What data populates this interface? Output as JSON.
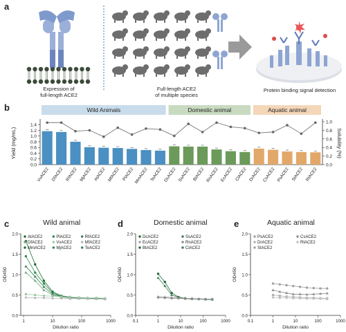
{
  "panel_a": {
    "letter": "a",
    "caption_left": [
      "Expression of",
      "full-length ACE2"
    ],
    "caption_middle": [
      "Full-length ACE2",
      "of multiple species"
    ],
    "caption_right": "Protein binding signal detection",
    "animal_icons": [
      "rabbit-icon",
      "rat-icon",
      "turtle-icon",
      "bat-icon",
      "chicken-icon",
      "cow-icon",
      "pig-icon",
      "hedgehog-icon",
      "sheep-icon",
      "horse-icon",
      "bird-icon",
      "fish-icon",
      "snake-icon",
      "pangolin-icon",
      "dog-icon",
      "cat-icon",
      "monkey-icon",
      "squirrel-icon",
      "rodent-icon",
      "human-icon"
    ]
  },
  "panel_b": {
    "letter": "b",
    "group_labels": [
      "Wild Animals",
      "Domestic animal",
      "Aquatic animal"
    ],
    "group_colors": [
      "#4a90c2",
      "#6b9a5a",
      "#e2a86a"
    ],
    "group_header_colors": [
      "#c8dceb",
      "#c8dac0",
      "#f4d6b8"
    ],
    "chart_data": {
      "type": "bar",
      "categories": [
        "VvACE2",
        "DfACE2",
        "RfACE2",
        "MjACE2",
        "AtACE2",
        "MfACE2",
        "PlACE2",
        "MmACE2",
        "TeACE2",
        "DcACE2",
        "SsACE2",
        "BtACE2",
        "RnACE2",
        "EcACE2",
        "ClACE2",
        "DrACE2",
        "CsACE2",
        "PsACE2",
        "StACE2",
        "RtACE2"
      ],
      "groups": [
        0,
        0,
        0,
        0,
        0,
        0,
        0,
        0,
        0,
        1,
        1,
        1,
        1,
        1,
        1,
        2,
        2,
        2,
        2,
        2
      ],
      "values": [
        1.17,
        1.14,
        0.8,
        0.61,
        0.59,
        0.58,
        0.55,
        0.51,
        0.49,
        0.64,
        0.63,
        0.63,
        0.53,
        0.47,
        0.44,
        0.56,
        0.52,
        0.46,
        0.44,
        0.43
      ],
      "solubility": [
        0.98,
        0.98,
        0.78,
        0.8,
        0.65,
        0.86,
        0.7,
        0.84,
        0.82,
        0.67,
        0.95,
        0.76,
        0.98,
        0.88,
        0.85,
        0.74,
        0.76,
        0.92,
        0.72,
        0.98
      ],
      "ylabel": "Yield (mg/mL)",
      "y2label": "Solubility (%)",
      "ylim": [
        0,
        1.5
      ],
      "yticks": [
        "0.0",
        "0.2",
        "0.4",
        "0.6",
        "0.8",
        "1.0",
        "1.2",
        "1.4"
      ],
      "ytick_values": [
        0,
        0.2,
        0.4,
        0.6,
        0.8,
        1.0,
        1.2,
        1.4
      ],
      "y2lim": [
        0,
        1.0
      ],
      "y2ticks": [
        "0.0",
        "0.2",
        "0.4",
        "0.6",
        "0.8",
        "1.0"
      ],
      "y2tick_values": [
        0,
        0.2,
        0.4,
        0.6,
        0.8,
        1.0
      ]
    }
  },
  "panel_c": {
    "letter": "c",
    "title": "Wild animal",
    "legend": [
      "AtACE2",
      "PlACE2",
      "RfACE2",
      "DfACE2",
      "VvACE2",
      "MfACE2",
      "MmACE2",
      "MjACE2",
      "TeACE2"
    ],
    "xlabel": "Dilution ratio",
    "ylabel": "OD450",
    "xticks": [
      "1",
      "10",
      "100",
      "1000"
    ],
    "yticks": [
      "0.0",
      "0.5",
      "1.0",
      "1.5",
      "2.0"
    ]
  },
  "panel_d": {
    "letter": "d",
    "title": "Domestic animal",
    "legend": [
      "DcACE2",
      "SsACE2",
      "EcACE2",
      "RnACE2",
      "BtACE2",
      "ClACE2"
    ],
    "xlabel": "Dilution ratio",
    "ylabel": "OD450",
    "xticks": [
      "0.1",
      "1",
      "10",
      "100",
      "1000"
    ],
    "yticks": [
      "0.0",
      "0.5",
      "1.0",
      "1.5",
      "2.0"
    ]
  },
  "panel_e": {
    "letter": "e",
    "title": "Aquatic animal",
    "legend": [
      "PsACE2",
      "CsACE2",
      "DrACE2",
      "RtACE2",
      "StACE2"
    ],
    "xlabel": "Dilution ratio",
    "ylabel": "OD450",
    "xticks": [
      "0.1",
      "1",
      "10",
      "100",
      "1000"
    ],
    "yticks": [
      "0.0",
      "0.5",
      "1.0",
      "1.5",
      "2.0"
    ]
  },
  "curves": {
    "c": [
      {
        "x": [
          1.2,
          2.5,
          5,
          10,
          20,
          40,
          80,
          160,
          320,
          640
        ],
        "y": [
          1.82,
          1.25,
          0.85,
          0.58,
          0.48,
          0.45,
          0.43,
          0.42,
          0.42,
          0.41
        ],
        "color": "#1e6b34",
        "marker": "circle"
      },
      {
        "x": [
          1.2,
          2.5,
          5,
          10,
          20,
          40,
          80,
          160,
          320,
          640
        ],
        "y": [
          1.45,
          1.05,
          0.78,
          0.55,
          0.47,
          0.44,
          0.43,
          0.42,
          0.41,
          0.41
        ],
        "color": "#2e8b4a",
        "marker": "circle"
      },
      {
        "x": [
          1.2,
          2.5,
          5,
          10,
          20,
          40,
          80,
          160,
          320,
          640
        ],
        "y": [
          1.2,
          0.95,
          0.7,
          0.52,
          0.46,
          0.44,
          0.43,
          0.42,
          0.41,
          0.4
        ],
        "color": "#3b7d5a",
        "marker": "triangle"
      },
      {
        "x": [
          1.2,
          2.5,
          5,
          10,
          20,
          40,
          80,
          160,
          320,
          640
        ],
        "y": [
          1.05,
          0.85,
          0.62,
          0.5,
          0.45,
          0.43,
          0.42,
          0.41,
          0.41,
          0.4
        ],
        "color": "#6aa57a",
        "marker": "triangle"
      },
      {
        "x": [
          1.2,
          2.5,
          5,
          10,
          20,
          40,
          80,
          160,
          320,
          640
        ],
        "y": [
          0.52,
          0.5,
          0.48,
          0.47,
          0.46,
          0.45,
          0.44,
          0.43,
          0.43,
          0.42
        ],
        "color": "#9cc9a6",
        "marker": "circle"
      },
      {
        "x": [
          1.2,
          2.5,
          5,
          10,
          20,
          40,
          80,
          160,
          320,
          640
        ],
        "y": [
          0.44,
          0.43,
          0.43,
          0.42,
          0.42,
          0.41,
          0.41,
          0.41,
          0.4,
          0.4
        ],
        "color": "#b5b5b5",
        "marker": "triangle"
      }
    ],
    "d": [
      {
        "x": [
          1,
          2,
          4,
          8,
          16,
          32,
          64,
          128,
          256
        ],
        "y": [
          1.02,
          0.82,
          0.55,
          0.45,
          0.42,
          0.41,
          0.4,
          0.4,
          0.39
        ],
        "color": "#1e6b34",
        "marker": "circle"
      },
      {
        "x": [
          1,
          2,
          4,
          8,
          16,
          32,
          64,
          128,
          256
        ],
        "y": [
          0.92,
          0.72,
          0.5,
          0.44,
          0.41,
          0.4,
          0.4,
          0.39,
          0.39
        ],
        "color": "#3b7d5a",
        "marker": "triangle"
      },
      {
        "x": [
          1,
          2,
          4,
          8,
          16,
          32,
          64,
          128,
          256
        ],
        "y": [
          0.46,
          0.45,
          0.44,
          0.43,
          0.42,
          0.41,
          0.41,
          0.4,
          0.4
        ],
        "color": "#a0a0a0",
        "marker": "triangle"
      },
      {
        "x": [
          1,
          2,
          4,
          8,
          16,
          32,
          64,
          128,
          256
        ],
        "y": [
          0.44,
          0.43,
          0.42,
          0.42,
          0.41,
          0.41,
          0.4,
          0.4,
          0.4
        ],
        "color": "#8a8a8a",
        "marker": "circle"
      }
    ],
    "e": [
      {
        "x": [
          1,
          2,
          4,
          8,
          16,
          32,
          64,
          128,
          256
        ],
        "y": [
          0.78,
          0.76,
          0.74,
          0.72,
          0.7,
          0.68,
          0.67,
          0.66,
          0.66
        ],
        "color": "#a0a0a0",
        "marker": "circle"
      },
      {
        "x": [
          1,
          2,
          4,
          8,
          16,
          32,
          64,
          128,
          256
        ],
        "y": [
          0.62,
          0.58,
          0.55,
          0.52,
          0.52,
          0.51,
          0.52,
          0.53,
          0.54
        ],
        "color": "#8a8a8a",
        "marker": "triangle"
      },
      {
        "x": [
          1,
          2,
          4,
          8,
          16,
          32,
          64,
          128,
          256
        ],
        "y": [
          0.5,
          0.48,
          0.46,
          0.45,
          0.44,
          0.43,
          0.43,
          0.42,
          0.42
        ],
        "color": "#b0b0b0",
        "marker": "square"
      },
      {
        "x": [
          1,
          2,
          4,
          8,
          16,
          32,
          64,
          128,
          256
        ],
        "y": [
          0.44,
          0.43,
          0.43,
          0.42,
          0.42,
          0.41,
          0.41,
          0.41,
          0.4
        ],
        "color": "#c0c0c0",
        "marker": "circle"
      }
    ]
  }
}
